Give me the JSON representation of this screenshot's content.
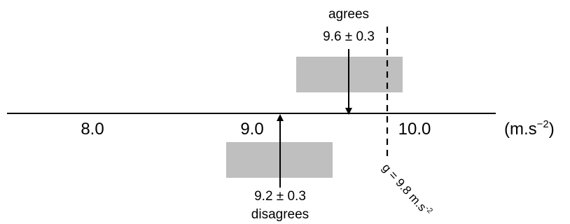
{
  "axis": {
    "ticks": [
      "8.0",
      "9.0",
      "10.0"
    ],
    "unit_prefix": "(m.s",
    "unit_exp": "−2",
    "unit_suffix": ")"
  },
  "upper_result": {
    "verdict": "agrees",
    "value_text": "9.6 ± 0.3"
  },
  "lower_result": {
    "verdict": "disagrees",
    "value_text": "9.2 ± 0.3"
  },
  "reference": {
    "prefix": "g = 9.8 m.s",
    "exp": "-2"
  },
  "colors": {
    "box": "#bfbfbf",
    "ink": "#000000"
  }
}
